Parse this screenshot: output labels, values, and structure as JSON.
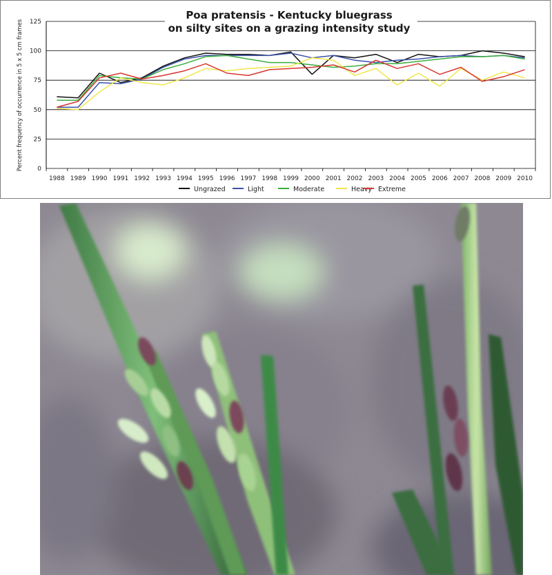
{
  "chart_data": {
    "type": "line",
    "title": "Poa pratensis  -  Kentucky bluegrass",
    "subtitle": "on silty sites on a grazing intensity study",
    "xlabel": "",
    "ylabel": "Percent frequency of occurrence in 5 x 5 cm frames",
    "ylim": [
      0,
      125
    ],
    "yticks": [
      0,
      25,
      50,
      75,
      100,
      125
    ],
    "grid": true,
    "legend_position": "bottom",
    "x": [
      "1988",
      "1989",
      "1990",
      "1991",
      "1992",
      "1993",
      "1994",
      "1995",
      "1996",
      "1997",
      "1998",
      "1999",
      "2000",
      "2001",
      "2002",
      "2003",
      "2004",
      "2005",
      "2006",
      "2007",
      "2008",
      "2009",
      "2010"
    ],
    "series": [
      {
        "name": "Ungrazed",
        "color": "#111111",
        "values": [
          61,
          60,
          81,
          73,
          77,
          87,
          94,
          98,
          97,
          97,
          96,
          99,
          80,
          96,
          94,
          97,
          90,
          97,
          95,
          96,
          100,
          98,
          95
        ]
      },
      {
        "name": "Light",
        "color": "#3a4fa8",
        "values": [
          52,
          52,
          73,
          72,
          76,
          86,
          93,
          96,
          96,
          96,
          96,
          98,
          94,
          96,
          92,
          90,
          92,
          93,
          95,
          96,
          95,
          96,
          94
        ]
      },
      {
        "name": "Moderate",
        "color": "#3aad3a",
        "values": [
          58,
          58,
          79,
          77,
          76,
          84,
          89,
          95,
          96,
          93,
          90,
          90,
          88,
          86,
          87,
          89,
          89,
          91,
          93,
          95,
          95,
          96,
          93
        ]
      },
      {
        "name": "Heavy",
        "color": "#f0e64a",
        "values": [
          51,
          50,
          65,
          77,
          73,
          71,
          77,
          85,
          83,
          85,
          86,
          87,
          94,
          92,
          79,
          85,
          71,
          81,
          70,
          85,
          75,
          82,
          77
        ]
      },
      {
        "name": "Extreme",
        "color": "#d8352f",
        "values": [
          52,
          57,
          77,
          81,
          76,
          79,
          83,
          89,
          81,
          79,
          84,
          85,
          86,
          88,
          82,
          92,
          85,
          89,
          80,
          86,
          74,
          78,
          84
        ]
      }
    ]
  },
  "photo": {
    "subject": "grass-seedhead-photo"
  }
}
